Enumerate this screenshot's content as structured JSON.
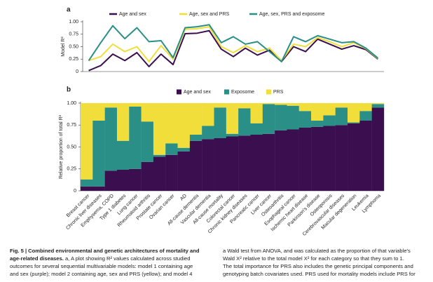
{
  "chart_data": [
    {
      "type": "line",
      "panel": "a",
      "ylabel": "Model R²",
      "categories": [
        "Breast cancer",
        "Chronic liver diseases",
        "Emphysema, COPD",
        "Type 1 diabetes",
        "Lung cancer",
        "Rheumatoid arthritis",
        "Prostate cancer",
        "Ovarian cancer",
        "AD",
        "All-cause dementia",
        "Vascular dementia",
        "All-cause mortality",
        "Colorectal cancer",
        "Chronic kidney diseases",
        "Pancreatic cancer",
        "Liver cancer",
        "Osteoarthritis",
        "Esophageal cancer",
        "Ischemic heart disease",
        "Parkinson's disease",
        "Osteoporosis",
        "Cerebrovascular diseases",
        "Macular degeneration",
        "Leukemia",
        "Lymphoma"
      ],
      "series": [
        {
          "name": "Age and sex",
          "color": "#3b0f4f",
          "values": [
            0.02,
            0.12,
            0.35,
            0.22,
            0.38,
            0.1,
            0.35,
            0.14,
            0.76,
            0.77,
            0.82,
            0.45,
            0.3,
            0.47,
            0.33,
            0.43,
            0.2,
            0.5,
            0.4,
            0.65,
            0.55,
            0.45,
            0.52,
            0.44,
            0.25
          ]
        },
        {
          "name": "Age, sex and PRS",
          "color": "#f2de3a",
          "values": [
            0.22,
            0.3,
            0.55,
            0.4,
            0.5,
            0.2,
            0.52,
            0.25,
            0.85,
            0.86,
            0.9,
            0.5,
            0.38,
            0.52,
            0.4,
            0.47,
            0.22,
            0.55,
            0.5,
            0.68,
            0.6,
            0.5,
            0.58,
            0.46,
            0.26
          ]
        },
        {
          "name": "Age, sex, PRS and exposome",
          "color": "#2a8f87",
          "values": [
            0.22,
            0.58,
            0.92,
            0.66,
            0.88,
            0.6,
            0.62,
            0.28,
            0.88,
            0.9,
            0.94,
            0.58,
            0.7,
            0.55,
            0.6,
            0.4,
            0.2,
            0.7,
            0.6,
            0.72,
            0.65,
            0.58,
            0.6,
            0.47,
            0.27
          ]
        }
      ],
      "ylim": [
        0,
        1
      ],
      "yticks": [
        0,
        0.25,
        {
          "value": 0.5,
          "label": "0.50"
        },
        0.75,
        {
          "value": 1,
          "label": "1.00"
        }
      ]
    },
    {
      "type": "bar",
      "stacked": true,
      "panel": "b",
      "ylabel": "Relative proportion of total R²",
      "categories": [
        "Breast cancer",
        "Chronic liver diseases",
        "Emphysema, COPD",
        "Type 1 diabetes",
        "Lung cancer",
        "Rheumatoid arthritis",
        "Prostate cancer",
        "Ovarian cancer",
        "AD",
        "All-cause dementia",
        "Vascular dementia",
        "All-cause mortality",
        "Colorectal cancer",
        "Chronic kidney diseases",
        "Pancreatic cancer",
        "Liver cancer",
        "Osteoarthritis",
        "Esophageal cancer",
        "Ischemic heart disease",
        "Parkinson's disease",
        "Osteoporosis",
        "Cerebrovascular diseases",
        "Macular degeneration",
        "Leukemia",
        "Lymphoma"
      ],
      "series": [
        {
          "name": "Age and sex",
          "color": "#3b0f4f",
          "values": [
            0.05,
            0.05,
            0.23,
            0.24,
            0.25,
            0.33,
            0.39,
            0.41,
            0.45,
            0.57,
            0.59,
            0.6,
            0.62,
            0.63,
            0.64,
            0.65,
            0.69,
            0.7,
            0.72,
            0.73,
            0.74,
            0.75,
            0.77,
            0.8,
            0.95
          ]
        },
        {
          "name": "Exposome",
          "color": "#2a8f87",
          "values": [
            0.08,
            0.75,
            0.72,
            0.33,
            0.71,
            0.46,
            0.02,
            0.13,
            0.04,
            0.07,
            0.15,
            0.35,
            0.03,
            0.31,
            0.13,
            0.34,
            0.29,
            0.27,
            0.19,
            0.07,
            0.12,
            0.2,
            0.01,
            0.11,
            0.04
          ]
        },
        {
          "name": "PRS",
          "color": "#f2de3a",
          "values": [
            0.87,
            0.2,
            0.05,
            0.43,
            0.04,
            0.21,
            0.59,
            0.46,
            0.51,
            0.36,
            0.26,
            0.05,
            0.35,
            0.06,
            0.23,
            0.01,
            0.02,
            0.03,
            0.09,
            0.2,
            0.14,
            0.05,
            0.22,
            0.09,
            0.01
          ]
        }
      ],
      "ylim": [
        0,
        1
      ],
      "yticks": [
        0,
        0.25,
        {
          "value": 0.5,
          "label": "0.50"
        },
        0.75,
        {
          "value": 1,
          "label": "1.00"
        }
      ]
    }
  ],
  "caption": {
    "heading": [
      "Fig. 5 | Combined environmental and genetic architectures of mortality and",
      "age-related diseases."
    ],
    "left": [
      "a, A plot showing R² values calculated across studied",
      "outcomes for several sequential multivariable models: model 1 containing age",
      "and sex (purple); model 2 containing age, sex and PRS (yellow); and model 4"
    ],
    "right": [
      "a Wald test from ANOVA, and was calculated as the proportion of that variable's",
      "Wald X² relative to the total model X² for each category so that they sum to 1.",
      "The total importance for PRS also includes the genetic principal components and",
      "genotyping batch covariates used. PRS used for mortality models include PRS for"
    ]
  }
}
